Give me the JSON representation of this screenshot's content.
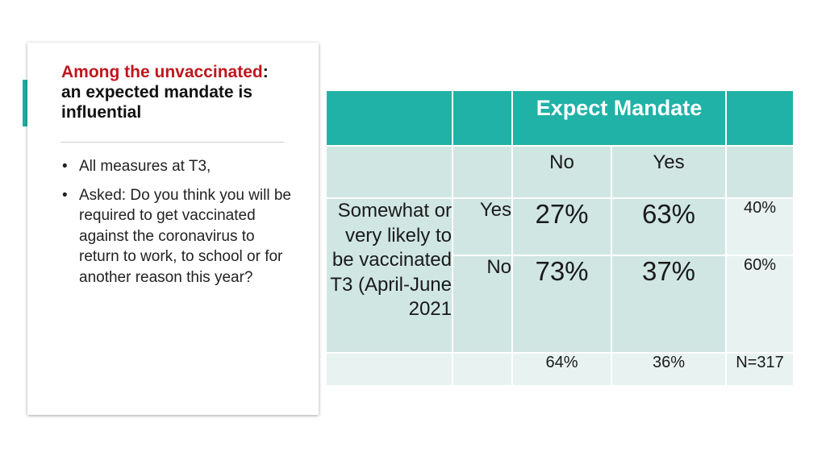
{
  "left_panel": {
    "title_highlight": "Among the unvaccinated",
    "title_rest": ": an expected mandate is influential",
    "bullets": [
      "All measures at T3,",
      "Asked: Do you think you will  be required to get vaccinated against the coronavirus to return to work, to school or for another reason this year?"
    ]
  },
  "table": {
    "column_header": "Expect Mandate",
    "columns": [
      "No",
      "Yes"
    ],
    "row_group_label": "Somewhat or very likely to be vaccinated T3 (April-June 2021",
    "rows": [
      {
        "label": "Yes",
        "no": "27%",
        "yes": "63%",
        "total": "40%"
      },
      {
        "label": "No",
        "no": "73%",
        "yes": "37%",
        "total": "60%"
      }
    ],
    "footer": {
      "no": "64%",
      "yes": "36%",
      "total": "N=317"
    }
  },
  "colors": {
    "accent_teal": "#1eaea4",
    "header_teal": "#20b2a7",
    "cell_dark": "#d0e6e3",
    "cell_light": "#e8f2f0",
    "title_red": "#c0161e"
  }
}
